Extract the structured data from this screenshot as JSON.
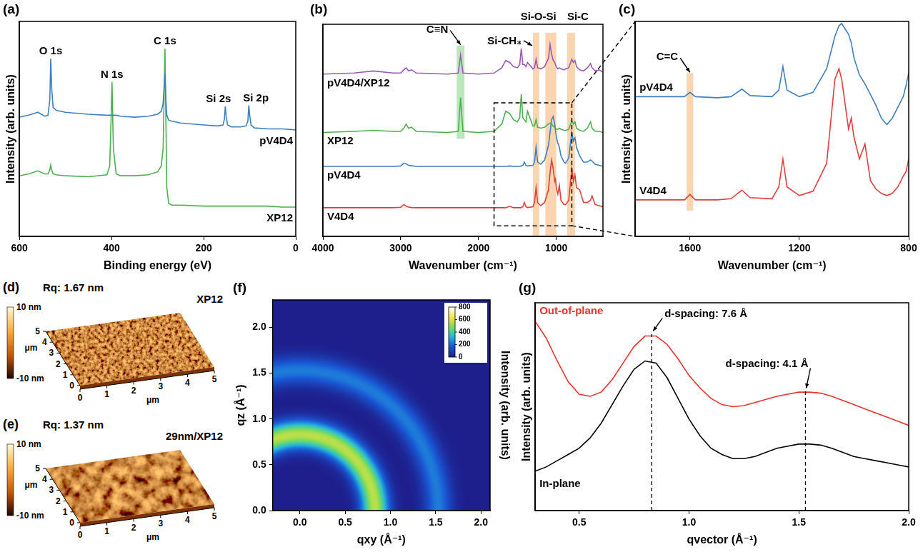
{
  "chart_data": [
    {
      "panel": "(a)",
      "type": "line",
      "xlabel": "Binding energy (eV)",
      "ylabel": "Intensity (arb. units)",
      "xlim": [
        600,
        0
      ],
      "xticks": [
        600,
        400,
        200,
        0
      ],
      "ylim": [
        0,
        11
      ],
      "tick_labels": "x",
      "grid": false,
      "x": [
        600,
        580,
        560,
        545,
        538,
        534,
        532,
        530,
        527,
        520,
        500,
        450,
        410,
        404,
        401,
        399,
        396,
        390,
        380,
        350,
        320,
        300,
        292,
        288,
        286,
        284,
        282,
        280,
        276,
        270,
        250,
        200,
        170,
        158,
        155,
        153,
        151,
        148,
        140,
        120,
        108,
        104,
        102,
        100,
        97,
        90,
        60,
        30,
        0
      ],
      "series": [
        {
          "name": "pV4D4",
          "color": "#3f7fc0",
          "values": [
            6.1,
            6.2,
            6.35,
            6.15,
            6.2,
            7.0,
            9.1,
            7.6,
            6.6,
            6.45,
            6.35,
            6.25,
            6.2,
            6.2,
            6.2,
            6.2,
            6.2,
            6.2,
            6.15,
            6.1,
            6.15,
            6.25,
            6.4,
            6.8,
            7.6,
            8.3,
            7.0,
            6.2,
            5.95,
            5.9,
            5.8,
            5.7,
            5.65,
            5.7,
            6.0,
            6.65,
            6.1,
            5.7,
            5.6,
            5.6,
            5.65,
            5.9,
            6.7,
            6.2,
            5.7,
            5.55,
            5.5,
            5.5,
            5.45
          ]
        },
        {
          "name": "XP12",
          "color": "#4caf50",
          "values": [
            3.1,
            3.2,
            3.35,
            3.2,
            3.2,
            3.4,
            3.65,
            3.4,
            3.2,
            3.15,
            3.1,
            3.05,
            3.15,
            3.6,
            6.0,
            7.9,
            4.5,
            3.2,
            3.1,
            3.1,
            3.15,
            3.3,
            3.6,
            4.5,
            7.0,
            9.6,
            6.0,
            2.5,
            1.7,
            1.6,
            1.6,
            1.55,
            1.55,
            1.55,
            1.55,
            1.55,
            1.55,
            1.55,
            1.55,
            1.55,
            1.55,
            1.55,
            1.55,
            1.55,
            1.55,
            1.55,
            1.55,
            1.5,
            1.5
          ]
        }
      ],
      "annotations": [
        {
          "text": "O 1s",
          "x": 532,
          "y": 9.1
        },
        {
          "text": "N 1s",
          "x": 399,
          "y": 7.9
        },
        {
          "text": "C 1s",
          "x": 284,
          "y": 9.6
        },
        {
          "text": "Si 2s",
          "x": 153,
          "y": 6.65
        },
        {
          "text": "Si 2p",
          "x": 102,
          "y": 6.7
        }
      ]
    },
    {
      "panel": "(b)",
      "type": "line",
      "xlabel": "Wavenumber (cm⁻¹)",
      "xlim": [
        4000,
        400
      ],
      "xticks": [
        4000,
        3000,
        2000,
        1000
      ],
      "ylim": [
        0,
        10
      ],
      "tick_labels": "x",
      "grid": false,
      "x": [
        4000,
        3600,
        3350,
        3100,
        3000,
        2960,
        2930,
        2900,
        2860,
        2800,
        2400,
        2260,
        2230,
        2200,
        2000,
        1800,
        1700,
        1650,
        1600,
        1550,
        1500,
        1470,
        1450,
        1430,
        1410,
        1390,
        1370,
        1300,
        1280,
        1260,
        1240,
        1200,
        1150,
        1100,
        1080,
        1060,
        1040,
        1020,
        1010,
        1000,
        980,
        960,
        940,
        900,
        880,
        840,
        800,
        780,
        760,
        740,
        700,
        650,
        600,
        560,
        540,
        500,
        450,
        400
      ],
      "series": [
        {
          "name": "pV4D4/XP12",
          "color": "#9b59b6",
          "values": [
            7.65,
            7.7,
            7.8,
            7.7,
            7.7,
            7.85,
            7.95,
            7.8,
            7.85,
            7.7,
            7.65,
            7.7,
            8.55,
            7.7,
            7.65,
            7.7,
            7.95,
            8.3,
            8.2,
            8.0,
            7.95,
            8.1,
            8.85,
            8.1,
            8.1,
            8.0,
            8.2,
            7.9,
            7.95,
            8.35,
            7.95,
            7.9,
            8.0,
            8.4,
            9.05,
            8.6,
            8.3,
            8.2,
            8.1,
            8.0,
            7.9,
            7.95,
            7.9,
            7.85,
            7.9,
            7.95,
            8.35,
            8.2,
            8.3,
            8.0,
            7.85,
            7.8,
            7.95,
            8.15,
            7.95,
            7.8,
            7.85,
            7.75
          ]
        },
        {
          "name": "XP12",
          "color": "#4caf50",
          "values": [
            4.9,
            4.95,
            5.0,
            4.95,
            4.95,
            5.1,
            5.3,
            5.1,
            5.15,
            4.95,
            4.9,
            4.95,
            6.55,
            4.95,
            4.9,
            4.95,
            5.3,
            5.9,
            5.8,
            5.5,
            5.4,
            5.6,
            6.7,
            5.6,
            5.5,
            5.4,
            5.9,
            5.2,
            5.2,
            5.5,
            5.15,
            5.1,
            5.15,
            5.3,
            5.35,
            5.3,
            5.2,
            5.15,
            5.1,
            5.05,
            5.05,
            5.1,
            5.05,
            5.0,
            5.0,
            5.05,
            5.45,
            5.3,
            5.4,
            5.1,
            5.0,
            4.95,
            5.1,
            5.4,
            5.1,
            4.95,
            4.95,
            4.9
          ]
        },
        {
          "name": "pV4D4",
          "color": "#3f7fc0",
          "values": [
            3.3,
            3.3,
            3.3,
            3.3,
            3.32,
            3.45,
            3.42,
            3.35,
            3.33,
            3.3,
            3.3,
            3.3,
            3.3,
            3.3,
            3.3,
            3.3,
            3.3,
            3.3,
            3.32,
            3.3,
            3.3,
            3.3,
            3.32,
            3.35,
            3.5,
            3.35,
            3.32,
            3.35,
            3.5,
            4.2,
            3.5,
            3.4,
            3.6,
            4.3,
            4.9,
            5.5,
            5.65,
            5.3,
            5.0,
            4.7,
            4.4,
            4.2,
            3.8,
            3.5,
            3.45,
            3.7,
            4.9,
            4.5,
            4.65,
            4.2,
            3.8,
            3.5,
            3.5,
            3.6,
            3.55,
            3.4,
            3.35,
            3.3
          ]
        },
        {
          "name": "V4D4",
          "color": "#e0403a",
          "values": [
            1.35,
            1.35,
            1.35,
            1.35,
            1.37,
            1.5,
            1.42,
            1.38,
            1.36,
            1.35,
            1.35,
            1.35,
            1.35,
            1.35,
            1.35,
            1.35,
            1.35,
            1.35,
            1.42,
            1.35,
            1.35,
            1.35,
            1.36,
            1.4,
            1.6,
            1.4,
            1.36,
            1.4,
            1.6,
            2.3,
            1.6,
            1.45,
            1.6,
            2.2,
            3.0,
            3.6,
            3.2,
            2.6,
            2.7,
            2.3,
            2.0,
            2.4,
            1.7,
            1.5,
            1.5,
            1.7,
            3.2,
            2.6,
            2.9,
            2.3,
            2.2,
            1.6,
            1.6,
            1.7,
            1.9,
            1.5,
            1.45,
            1.4
          ]
        }
      ],
      "bands": [
        {
          "label": "C≡N",
          "from": 2280,
          "to": 2180,
          "y_from": 4.6,
          "y_to": 9.0,
          "color": "#8fd68f"
        },
        {
          "label": "Si-CH₃",
          "from": 1300,
          "to": 1220,
          "y_from": 0,
          "y_to": 9.6,
          "color": "#f7b97a"
        },
        {
          "label": "Si-O-Si",
          "from": 1140,
          "to": 1000,
          "y_from": 0,
          "y_to": 9.6,
          "color": "#f7b97a"
        },
        {
          "label": "Si-C",
          "from": 860,
          "to": 760,
          "y_from": 0,
          "y_to": 9.6,
          "color": "#f7b97a"
        }
      ]
    },
    {
      "panel": "(c)",
      "type": "line",
      "xlabel": "Wavenumber (cm⁻¹)",
      "ylabel": "Intensity (arb. units)",
      "xlim": [
        1800,
        800
      ],
      "xticks": [
        1600,
        1200,
        800
      ],
      "ylim": [
        0,
        10
      ],
      "tick_labels": "x",
      "grid": false,
      "x": [
        1800,
        1700,
        1620,
        1600,
        1580,
        1500,
        1450,
        1410,
        1380,
        1300,
        1275,
        1260,
        1245,
        1200,
        1150,
        1100,
        1070,
        1055,
        1045,
        1020,
        1010,
        1000,
        980,
        960,
        940,
        920,
        900,
        880,
        860,
        840,
        820,
        810,
        800
      ],
      "series": [
        {
          "name": "pV4D4",
          "color": "#3f7fc0",
          "values": [
            6.5,
            6.5,
            6.5,
            6.7,
            6.5,
            6.45,
            6.5,
            6.85,
            6.55,
            6.5,
            6.8,
            7.9,
            6.8,
            6.5,
            6.7,
            7.8,
            9.3,
            9.8,
            9.9,
            9.4,
            9.0,
            8.3,
            7.5,
            7.1,
            6.6,
            6.1,
            5.5,
            5.2,
            5.5,
            6.0,
            6.5,
            7.0,
            7.6
          ]
        },
        {
          "name": "V4D4",
          "color": "#e0403a",
          "values": [
            1.7,
            1.7,
            1.7,
            1.95,
            1.7,
            1.7,
            1.75,
            2.15,
            1.8,
            1.75,
            2.3,
            3.6,
            2.3,
            1.9,
            2.1,
            3.4,
            7.3,
            7.8,
            7.3,
            5.0,
            5.5,
            4.6,
            3.6,
            4.3,
            2.6,
            2.2,
            2.0,
            1.9,
            2.0,
            2.3,
            2.8,
            3.0,
            3.6
          ]
        }
      ],
      "bands": [
        {
          "label": "C=C",
          "from": 1612,
          "to": 1588,
          "y_from": 1.2,
          "y_to": 7.6,
          "color": "#f7b97a"
        }
      ]
    },
    {
      "panel": "(d)",
      "type": "surface",
      "title": "XP12",
      "rq_label": "Rq: 1.67 nm",
      "zlim": [
        -10,
        10
      ],
      "zticks": [
        {
          "value": 10,
          "label": "10 nm"
        },
        {
          "value": -10,
          "label": "-10 nm"
        }
      ],
      "xlabel": "μm",
      "ylabel": "μm",
      "xlim": [
        0,
        5
      ],
      "ylim": [
        0,
        5
      ],
      "xticks": [
        0,
        1,
        2,
        3,
        4,
        5
      ],
      "yticks": [
        0,
        1,
        2,
        3,
        4,
        5
      ]
    },
    {
      "panel": "(e)",
      "type": "surface",
      "title": "29nm/XP12",
      "rq_label": "Rq: 1.37 nm",
      "zlim": [
        -10,
        10
      ],
      "zticks": [
        {
          "value": 10,
          "label": "10 nm"
        },
        {
          "value": -10,
          "label": "-10 nm"
        }
      ],
      "xlabel": "μm",
      "ylabel": "μm",
      "xlim": [
        0,
        5
      ],
      "ylim": [
        0,
        5
      ],
      "xticks": [
        0,
        1,
        2,
        3,
        4,
        5
      ],
      "yticks": [
        0,
        1,
        2,
        3,
        4,
        5
      ]
    },
    {
      "panel": "(f)",
      "type": "image",
      "xlabel": "qxy (Å⁻¹)",
      "ylabel": "qz (Å⁻¹)",
      "xlim": [
        -0.3,
        2.1
      ],
      "ylim": [
        0,
        2.3
      ],
      "xticks": [
        {
          "value": 0,
          "label": "0.0"
        },
        0.5,
        {
          "value": 1,
          "label": "1.0"
        },
        1.5,
        {
          "value": 2,
          "label": "2.0"
        }
      ],
      "yticks": [
        {
          "value": 0,
          "label": "0.0"
        },
        0.5,
        {
          "value": 1,
          "label": "1.0"
        },
        1.5,
        {
          "value": 2,
          "label": "2.0"
        }
      ],
      "rings": [
        {
          "q": 0.83,
          "intensity": 560
        },
        {
          "q": 1.53,
          "intensity": 230
        }
      ],
      "colorbar": {
        "range": [
          0,
          800
        ],
        "ticks": [
          0,
          200,
          400,
          600,
          800
        ],
        "label": "Intensity (arb. units)"
      }
    },
    {
      "panel": "(g)",
      "type": "line",
      "xlabel": "qvector (Å⁻¹)",
      "ylabel": "Intensity (arb. units)",
      "xlim": [
        0.3,
        2.0
      ],
      "xticks": [
        0.5,
        {
          "value": 1,
          "label": "1.0"
        },
        1.5,
        {
          "value": 2,
          "label": "2.0"
        }
      ],
      "ylim": [
        0,
        10
      ],
      "tick_labels": "x",
      "grid": false,
      "x": [
        0.3,
        0.35,
        0.4,
        0.45,
        0.5,
        0.55,
        0.6,
        0.65,
        0.7,
        0.75,
        0.8,
        0.85,
        0.9,
        0.95,
        1.0,
        1.05,
        1.1,
        1.15,
        1.2,
        1.25,
        1.3,
        1.35,
        1.4,
        1.45,
        1.5,
        1.55,
        1.6,
        1.65,
        1.7,
        1.75,
        1.8,
        1.85,
        1.9,
        1.95,
        2.0
      ],
      "series": [
        {
          "name": "Out-of-plane",
          "color": "#e8322a",
          "values": [
            9.1,
            8.3,
            7.2,
            6.2,
            5.6,
            5.5,
            5.7,
            6.3,
            7.1,
            7.9,
            8.4,
            8.4,
            8.0,
            7.3,
            6.5,
            5.9,
            5.4,
            5.1,
            5.0,
            5.05,
            5.2,
            5.35,
            5.5,
            5.6,
            5.7,
            5.7,
            5.65,
            5.5,
            5.3,
            5.1,
            4.9,
            4.7,
            4.5,
            4.3,
            4.1
          ]
        },
        {
          "name": "In-plane",
          "color": "#000000",
          "values": [
            1.9,
            2.1,
            2.4,
            2.7,
            3.0,
            3.5,
            4.2,
            5.1,
            6.0,
            6.8,
            7.2,
            7.1,
            6.4,
            5.4,
            4.4,
            3.6,
            3.0,
            2.7,
            2.5,
            2.5,
            2.6,
            2.8,
            3.0,
            3.1,
            3.2,
            3.2,
            3.15,
            3.0,
            2.8,
            2.6,
            2.5,
            2.4,
            2.3,
            2.2,
            2.1
          ]
        }
      ],
      "annotations": [
        {
          "text": "d-spacing: 7.6 Å",
          "x": 0.83,
          "y": 8.5
        },
        {
          "text": "d-spacing: 4.1 Å",
          "x": 1.53,
          "y": 5.75
        }
      ]
    }
  ]
}
